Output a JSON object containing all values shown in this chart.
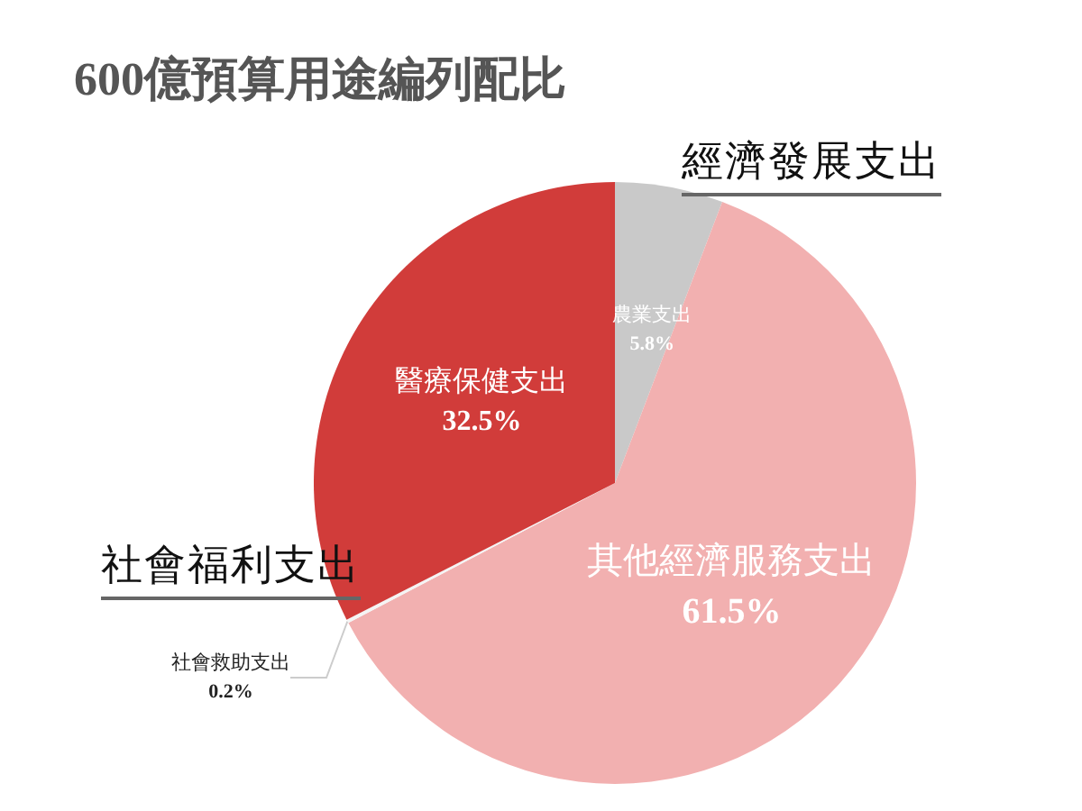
{
  "chart_data": {
    "type": "pie",
    "title": "600億預算用途編列配比",
    "categories": [
      "農業支出",
      "其他經濟服務支出",
      "社會救助支出",
      "醫療保健支出"
    ],
    "values": [
      5.8,
      61.5,
      0.2,
      32.5
    ],
    "colors": [
      "#c9c9c9",
      "#f2b0b0",
      "#f4f4f4",
      "#d13c3a"
    ],
    "value_labels": [
      "5.8%",
      "61.5%",
      "0.2%",
      "32.5%"
    ],
    "legend": false,
    "annotations": [
      "經濟發展支出",
      "社會福利支出"
    ]
  }
}
